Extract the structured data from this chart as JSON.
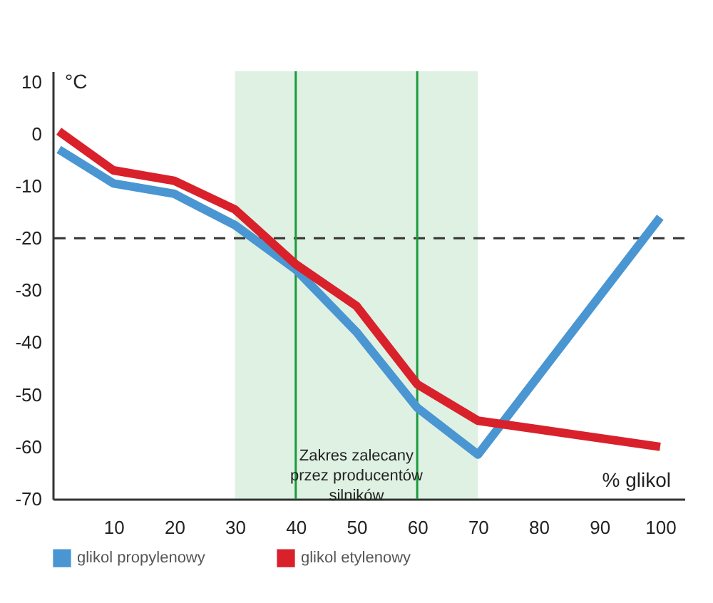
{
  "chart_data": {
    "type": "line",
    "xlabel": "% glikol",
    "ylabel": "°C",
    "xlim": [
      0,
      104
    ],
    "ylim": [
      -70,
      12
    ],
    "xticks": [
      10,
      20,
      30,
      40,
      50,
      60,
      70,
      80,
      90,
      100
    ],
    "yticks": [
      10,
      0,
      -10,
      -20,
      -30,
      -40,
      -50,
      -60,
      -70
    ],
    "series": [
      {
        "name": "glikol propylenowy",
        "color": "#4a96d2",
        "x": [
          1,
          10,
          20,
          30,
          40,
          50,
          60,
          70,
          100
        ],
        "values": [
          -3,
          -9.5,
          -11.5,
          -17.5,
          -26,
          -38,
          -52.5,
          -61.5,
          -16
        ]
      },
      {
        "name": "glikol etylenowy",
        "color": "#d9212b",
        "x": [
          1,
          10,
          20,
          30,
          40,
          50,
          60,
          70,
          100
        ],
        "values": [
          0.5,
          -7,
          -9,
          -14.5,
          -25,
          -33,
          -48,
          -55,
          -60
        ]
      }
    ],
    "ref_lines": [
      {
        "axis": "y",
        "value": -20,
        "color": "#333333",
        "line_style": "dashed"
      },
      {
        "axis": "x",
        "value": 40,
        "color": "#1a9a3a",
        "line_style": "solid"
      },
      {
        "axis": "x",
        "value": 60,
        "color": "#1a9a3a",
        "line_style": "solid"
      }
    ],
    "bands": [
      {
        "axis": "x",
        "from": 30,
        "to": 70,
        "label": "Zakres zalecany przez producentów silników",
        "color": "#1a9a3a"
      }
    ],
    "grid": false,
    "legend": "bottom",
    "marker": "none",
    "line_style": "solid"
  }
}
